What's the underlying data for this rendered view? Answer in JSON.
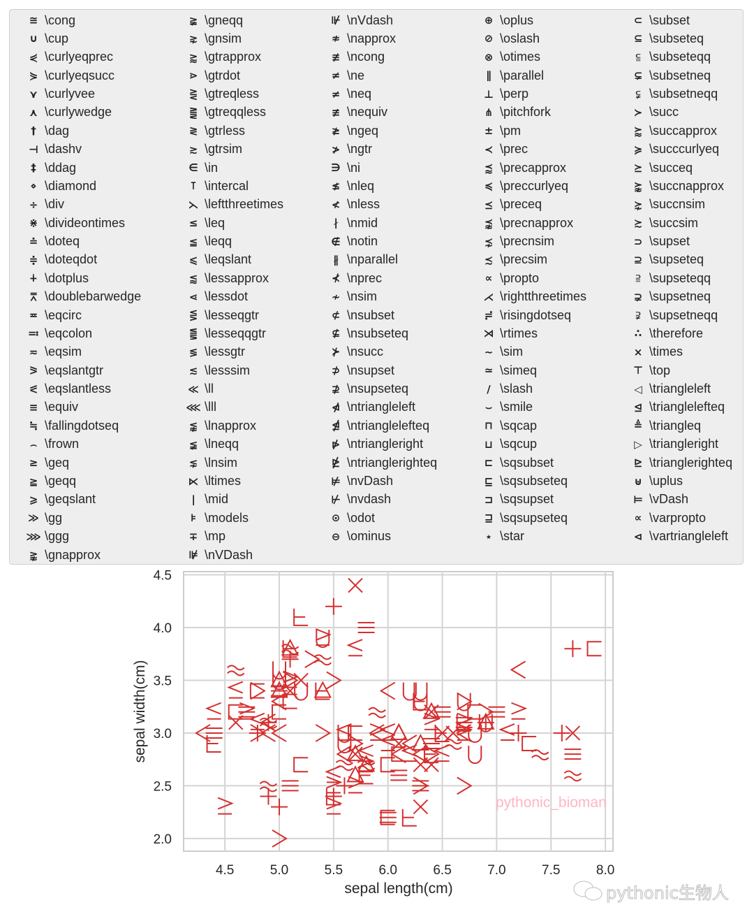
{
  "chart_data": {
    "type": "scatter",
    "xlabel": "sepal length(cm)",
    "ylabel": "sepal width(cm)",
    "xlim": [
      4.12,
      8.07
    ],
    "ylim": [
      1.88,
      4.53
    ],
    "xticks": [
      "4.5",
      "5.0",
      "5.5",
      "6.0",
      "6.5",
      "7.0",
      "7.5",
      "8.0"
    ],
    "yticks": [
      "2.0",
      "2.5",
      "3.0",
      "3.5",
      "4.0",
      "4.5"
    ],
    "grid": true,
    "color": "#d3302f",
    "legend_placement": "top (above plot, 5 columns)",
    "watermark": "pythonic_bioman",
    "footer_watermark": "pythonic生物人",
    "legend": [
      [
        "\\cong",
        "≅"
      ],
      [
        "\\cup",
        "∪"
      ],
      [
        "\\curlyeqprec",
        "⋞"
      ],
      [
        "\\curlyeqsucc",
        "⋟"
      ],
      [
        "\\curlyvee",
        "⋎"
      ],
      [
        "\\curlywedge",
        "⋏"
      ],
      [
        "\\dag",
        "†"
      ],
      [
        "\\dashv",
        "⊣"
      ],
      [
        "\\ddag",
        "‡"
      ],
      [
        "\\diamond",
        "⋄"
      ],
      [
        "\\div",
        "÷"
      ],
      [
        "\\divideontimes",
        "⋇"
      ],
      [
        "\\doteq",
        "≐"
      ],
      [
        "\\doteqdot",
        "≑"
      ],
      [
        "\\dotplus",
        "∔"
      ],
      [
        "\\doublebarwedge",
        "⩞"
      ],
      [
        "\\eqcirc",
        "≖"
      ],
      [
        "\\eqcolon",
        "≕"
      ],
      [
        "\\eqsim",
        "≂"
      ],
      [
        "\\eqslantgtr",
        "⪖"
      ],
      [
        "\\eqslantless",
        "⪕"
      ],
      [
        "\\equiv",
        "≡"
      ],
      [
        "\\fallingdotseq",
        "≒"
      ],
      [
        "\\frown",
        "⌢"
      ],
      [
        "\\geq",
        "≥"
      ],
      [
        "\\geqq",
        "≧"
      ],
      [
        "\\geqslant",
        "⩾"
      ],
      [
        "\\gg",
        "≫"
      ],
      [
        "\\ggg",
        "⋙"
      ],
      [
        "\\gnapprox",
        "⪊"
      ],
      [
        "\\gneqq",
        "≩"
      ],
      [
        "\\gnsim",
        "⋧"
      ],
      [
        "\\gtrapprox",
        "⪆"
      ],
      [
        "\\gtrdot",
        "⋗"
      ],
      [
        "\\gtreqless",
        "⋛"
      ],
      [
        "\\gtreqqless",
        "⪌"
      ],
      [
        "\\gtrless",
        "≷"
      ],
      [
        "\\gtrsim",
        "≳"
      ],
      [
        "\\in",
        "∈"
      ],
      [
        "\\intercal",
        "⊺"
      ],
      [
        "\\leftthreetimes",
        "⋋"
      ],
      [
        "\\leq",
        "≤"
      ],
      [
        "\\leqq",
        "≦"
      ],
      [
        "\\leqslant",
        "⩽"
      ],
      [
        "\\lessapprox",
        "⪅"
      ],
      [
        "\\lessdot",
        "⋖"
      ],
      [
        "\\lesseqgtr",
        "⋚"
      ],
      [
        "\\lesseqqgtr",
        "⪋"
      ],
      [
        "\\lessgtr",
        "≶"
      ],
      [
        "\\lesssim",
        "≲"
      ],
      [
        "\\ll",
        "≪"
      ],
      [
        "\\lll",
        "⋘"
      ],
      [
        "\\lnapprox",
        "⪉"
      ],
      [
        "\\lneqq",
        "≨"
      ],
      [
        "\\lnsim",
        "⋦"
      ],
      [
        "\\ltimes",
        "⋉"
      ],
      [
        "\\mid",
        "∣"
      ],
      [
        "\\models",
        "⊧"
      ],
      [
        "\\mp",
        "∓"
      ],
      [
        "\\nVDash",
        "⊯"
      ],
      [
        "\\nVdash",
        "⊮"
      ],
      [
        "\\napprox",
        "≉"
      ],
      [
        "\\ncong",
        "≇"
      ],
      [
        "\\ne",
        "≠"
      ],
      [
        "\\neq",
        "≠"
      ],
      [
        "\\nequiv",
        "≢"
      ],
      [
        "\\ngeq",
        "≱"
      ],
      [
        "\\ngtr",
        "≯"
      ],
      [
        "\\ni",
        "∋"
      ],
      [
        "\\nleq",
        "≰"
      ],
      [
        "\\nless",
        "≮"
      ],
      [
        "\\nmid",
        "∤"
      ],
      [
        "\\notin",
        "∉"
      ],
      [
        "\\nparallel",
        "∦"
      ],
      [
        "\\nprec",
        "⊀"
      ],
      [
        "\\nsim",
        "≁"
      ],
      [
        "\\nsubset",
        "⊄"
      ],
      [
        "\\nsubseteq",
        "⊈"
      ],
      [
        "\\nsucc",
        "⊁"
      ],
      [
        "\\nsupset",
        "⊅"
      ],
      [
        "\\nsupseteq",
        "⊉"
      ],
      [
        "\\ntriangleleft",
        "⋪"
      ],
      [
        "\\ntrianglelefteq",
        "⋬"
      ],
      [
        "\\ntriangleright",
        "⋫"
      ],
      [
        "\\ntrianglerighteq",
        "⋭"
      ],
      [
        "\\nvDash",
        "⊭"
      ],
      [
        "\\nvdash",
        "⊬"
      ],
      [
        "\\odot",
        "⊙"
      ],
      [
        "\\ominus",
        "⊖"
      ],
      [
        "\\oplus",
        "⊕"
      ],
      [
        "\\oslash",
        "⊘"
      ],
      [
        "\\otimes",
        "⊗"
      ],
      [
        "\\parallel",
        "∥"
      ],
      [
        "\\perp",
        "⊥"
      ],
      [
        "\\pitchfork",
        "⋔"
      ],
      [
        "\\pm",
        "±"
      ],
      [
        "\\prec",
        "≺"
      ],
      [
        "\\precapprox",
        "⪷"
      ],
      [
        "\\preccurlyeq",
        "≼"
      ],
      [
        "\\preceq",
        "⪯"
      ],
      [
        "\\precnapprox",
        "⪹"
      ],
      [
        "\\precnsim",
        "⋨"
      ],
      [
        "\\precsim",
        "≾"
      ],
      [
        "\\propto",
        "∝"
      ],
      [
        "\\rightthreetimes",
        "⋌"
      ],
      [
        "\\risingdotseq",
        "≓"
      ],
      [
        "\\rtimes",
        "⋊"
      ],
      [
        "\\sim",
        "∼"
      ],
      [
        "\\simeq",
        "≃"
      ],
      [
        "\\slash",
        "∕"
      ],
      [
        "\\smile",
        "⌣"
      ],
      [
        "\\sqcap",
        "⊓"
      ],
      [
        "\\sqcup",
        "⊔"
      ],
      [
        "\\sqsubset",
        "⊏"
      ],
      [
        "\\sqsubseteq",
        "⊑"
      ],
      [
        "\\sqsupset",
        "⊐"
      ],
      [
        "\\sqsupseteq",
        "⊒"
      ],
      [
        "\\star",
        "⋆"
      ],
      [
        "\\subset",
        "⊂"
      ],
      [
        "\\subseteq",
        "⊆"
      ],
      [
        "\\subseteqq",
        "⫅"
      ],
      [
        "\\subsetneq",
        "⊊"
      ],
      [
        "\\subsetneqq",
        "⫋"
      ],
      [
        "\\succ",
        "≻"
      ],
      [
        "\\succapprox",
        "⪸"
      ],
      [
        "\\succcurlyeq",
        "≽"
      ],
      [
        "\\succeq",
        "⪰"
      ],
      [
        "\\succnapprox",
        "⪺"
      ],
      [
        "\\succnsim",
        "⋩"
      ],
      [
        "\\succsim",
        "≿"
      ],
      [
        "\\supset",
        "⊃"
      ],
      [
        "\\supseteq",
        "⊇"
      ],
      [
        "\\supseteqq",
        "⫆"
      ],
      [
        "\\supsetneq",
        "⊋"
      ],
      [
        "\\supsetneqq",
        "⫌"
      ],
      [
        "\\therefore",
        "∴"
      ],
      [
        "\\times",
        "×"
      ],
      [
        "\\top",
        "⊤"
      ],
      [
        "\\triangleleft",
        "◁"
      ],
      [
        "\\trianglelefteq",
        "⊴"
      ],
      [
        "\\triangleq",
        "≜"
      ],
      [
        "\\triangleright",
        "▷"
      ],
      [
        "\\trianglerighteq",
        "⊵"
      ],
      [
        "\\uplus",
        "⊎"
      ],
      [
        "\\vDash",
        "⊨"
      ],
      [
        "\\varpropto",
        "∝"
      ],
      [
        "\\vartriangleleft",
        "⊲"
      ]
    ],
    "legend_columns": [
      30,
      30,
      29,
      29,
      29
    ],
    "points": [
      [
        5.1,
        3.5
      ],
      [
        4.9,
        3.0
      ],
      [
        4.7,
        3.2
      ],
      [
        4.6,
        3.1
      ],
      [
        5.0,
        3.6
      ],
      [
        5.4,
        3.9
      ],
      [
        4.6,
        3.4
      ],
      [
        5.0,
        3.4
      ],
      [
        4.4,
        2.9
      ],
      [
        4.9,
        3.1
      ],
      [
        5.4,
        3.7
      ],
      [
        4.8,
        3.4
      ],
      [
        4.8,
        3.0
      ],
      [
        4.3,
        3.0
      ],
      [
        5.8,
        4.0
      ],
      [
        5.7,
        4.4
      ],
      [
        5.4,
        3.9
      ],
      [
        5.1,
        3.5
      ],
      [
        5.7,
        3.8
      ],
      [
        5.1,
        3.8
      ],
      [
        5.4,
        3.4
      ],
      [
        5.1,
        3.7
      ],
      [
        4.6,
        3.6
      ],
      [
        5.1,
        3.3
      ],
      [
        4.8,
        3.4
      ],
      [
        5.0,
        3.0
      ],
      [
        5.0,
        3.4
      ],
      [
        5.2,
        3.5
      ],
      [
        5.2,
        3.4
      ],
      [
        4.7,
        3.2
      ],
      [
        4.8,
        3.1
      ],
      [
        5.4,
        3.4
      ],
      [
        5.2,
        4.1
      ],
      [
        5.5,
        4.2
      ],
      [
        4.9,
        3.1
      ],
      [
        5.0,
        3.2
      ],
      [
        5.5,
        3.5
      ],
      [
        4.9,
        3.1
      ],
      [
        4.4,
        3.0
      ],
      [
        5.1,
        3.4
      ],
      [
        5.0,
        3.5
      ],
      [
        4.5,
        2.3
      ],
      [
        4.4,
        3.2
      ],
      [
        5.0,
        3.5
      ],
      [
        5.1,
        3.8
      ],
      [
        4.8,
        3.0
      ],
      [
        5.1,
        3.8
      ],
      [
        4.6,
        3.2
      ],
      [
        5.3,
        3.7
      ],
      [
        5.0,
        3.3
      ],
      [
        7.0,
        3.2
      ],
      [
        6.4,
        3.2
      ],
      [
        6.9,
        3.1
      ],
      [
        5.5,
        2.3
      ],
      [
        6.5,
        2.8
      ],
      [
        5.7,
        2.8
      ],
      [
        6.3,
        3.3
      ],
      [
        4.9,
        2.4
      ],
      [
        6.6,
        2.9
      ],
      [
        5.2,
        2.7
      ],
      [
        5.0,
        2.0
      ],
      [
        5.9,
        3.0
      ],
      [
        6.0,
        2.2
      ],
      [
        6.1,
        2.9
      ],
      [
        5.6,
        2.9
      ],
      [
        6.7,
        3.1
      ],
      [
        5.6,
        3.0
      ],
      [
        5.8,
        2.7
      ],
      [
        6.2,
        2.2
      ],
      [
        5.6,
        2.5
      ],
      [
        5.9,
        3.2
      ],
      [
        6.1,
        2.8
      ],
      [
        6.3,
        2.5
      ],
      [
        6.1,
        2.8
      ],
      [
        6.4,
        2.9
      ],
      [
        6.6,
        3.0
      ],
      [
        6.8,
        2.8
      ],
      [
        6.7,
        3.0
      ],
      [
        6.0,
        2.9
      ],
      [
        5.7,
        2.6
      ],
      [
        5.5,
        2.4
      ],
      [
        5.5,
        2.4
      ],
      [
        5.8,
        2.7
      ],
      [
        6.0,
        2.7
      ],
      [
        5.4,
        3.0
      ],
      [
        6.0,
        3.4
      ],
      [
        6.7,
        3.1
      ],
      [
        6.3,
        2.3
      ],
      [
        5.6,
        3.0
      ],
      [
        5.5,
        2.5
      ],
      [
        5.5,
        2.6
      ],
      [
        6.1,
        3.0
      ],
      [
        5.8,
        2.6
      ],
      [
        5.0,
        2.3
      ],
      [
        5.6,
        2.7
      ],
      [
        5.7,
        3.0
      ],
      [
        5.7,
        2.9
      ],
      [
        6.2,
        2.9
      ],
      [
        5.1,
        2.5
      ],
      [
        5.7,
        2.8
      ],
      [
        6.3,
        3.3
      ],
      [
        5.8,
        2.7
      ],
      [
        7.1,
        3.0
      ],
      [
        6.3,
        2.9
      ],
      [
        6.5,
        3.0
      ],
      [
        7.6,
        3.0
      ],
      [
        4.9,
        2.5
      ],
      [
        7.3,
        2.9
      ],
      [
        6.7,
        2.5
      ],
      [
        7.2,
        3.6
      ],
      [
        6.5,
        3.2
      ],
      [
        6.4,
        2.7
      ],
      [
        6.8,
        3.0
      ],
      [
        5.7,
        2.5
      ],
      [
        5.8,
        2.8
      ],
      [
        6.4,
        3.2
      ],
      [
        6.5,
        3.0
      ],
      [
        7.7,
        3.8
      ],
      [
        7.7,
        2.6
      ],
      [
        6.0,
        2.2
      ],
      [
        6.9,
        3.2
      ],
      [
        5.6,
        2.8
      ],
      [
        7.7,
        2.8
      ],
      [
        6.3,
        2.7
      ],
      [
        6.7,
        3.3
      ],
      [
        7.2,
        3.2
      ],
      [
        6.2,
        2.8
      ],
      [
        6.1,
        3.0
      ],
      [
        6.4,
        2.8
      ],
      [
        7.2,
        3.0
      ],
      [
        7.4,
        2.8
      ],
      [
        7.9,
        3.8
      ],
      [
        6.4,
        2.8
      ],
      [
        6.3,
        2.8
      ],
      [
        6.1,
        2.6
      ],
      [
        7.7,
        3.0
      ],
      [
        6.3,
        3.4
      ],
      [
        6.4,
        3.1
      ],
      [
        6.0,
        3.0
      ],
      [
        6.9,
        3.1
      ],
      [
        6.7,
        3.1
      ],
      [
        6.9,
        3.1
      ],
      [
        5.8,
        2.7
      ],
      [
        6.8,
        3.2
      ],
      [
        6.7,
        3.3
      ],
      [
        6.7,
        3.0
      ],
      [
        6.3,
        2.5
      ],
      [
        6.5,
        3.0
      ],
      [
        6.2,
        3.4
      ],
      [
        5.9,
        3.0
      ]
    ]
  }
}
